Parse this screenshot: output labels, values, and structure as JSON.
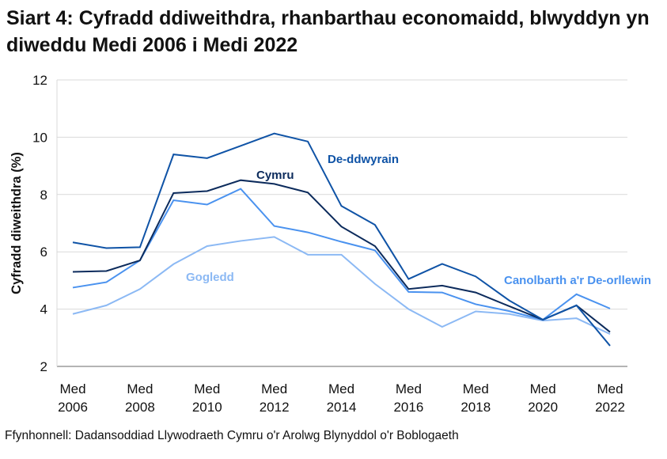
{
  "chart_data": {
    "type": "line",
    "title": "Siart 4: Cyfradd ddiweithdra, rhanbarthau economaidd, blwyddyn yn diweddu Medi 2006 i Medi 2022",
    "xlabel": "",
    "ylabel": "Cyfradd diweithdra (%)",
    "ylim": [
      2,
      12
    ],
    "yticks": [
      "2",
      "4",
      "6",
      "8",
      "10",
      "12"
    ],
    "grid": true,
    "x": [
      2006,
      2007,
      2008,
      2009,
      2010,
      2011,
      2012,
      2013,
      2014,
      2015,
      2016,
      2017,
      2018,
      2019,
      2020,
      2021,
      2022
    ],
    "xtick_labels": [
      {
        "year": 2006,
        "line1": "Med",
        "line2": "2006"
      },
      {
        "year": 2008,
        "line1": "Med",
        "line2": "2008"
      },
      {
        "year": 2010,
        "line1": "Med",
        "line2": "2010"
      },
      {
        "year": 2012,
        "line1": "Med",
        "line2": "2012"
      },
      {
        "year": 2014,
        "line1": "Med",
        "line2": "2014"
      },
      {
        "year": 2016,
        "line1": "Med",
        "line2": "2016"
      },
      {
        "year": 2018,
        "line1": "Med",
        "line2": "2018"
      },
      {
        "year": 2020,
        "line1": "Med",
        "line2": "2020"
      },
      {
        "year": 2022,
        "line1": "Med",
        "line2": "2022"
      }
    ],
    "series": [
      {
        "name": "Gogledd",
        "color": "#8cb9f4",
        "values": [
          3.83,
          4.13,
          4.7,
          5.57,
          6.2,
          6.38,
          6.52,
          5.9,
          5.9,
          4.88,
          4.0,
          3.38,
          3.92,
          3.83,
          3.6,
          3.68,
          3.13
        ]
      },
      {
        "name": "Canolbarth a'r De-orllewin",
        "color": "#4a92ef",
        "values": [
          4.75,
          4.94,
          5.7,
          7.8,
          7.65,
          8.2,
          6.9,
          6.68,
          6.35,
          6.05,
          4.6,
          4.58,
          4.17,
          3.93,
          3.63,
          4.52,
          4.02
        ]
      },
      {
        "name": "Cymru",
        "color": "#0c2b5c",
        "values": [
          5.3,
          5.33,
          5.7,
          8.05,
          8.12,
          8.5,
          8.37,
          8.07,
          6.88,
          6.2,
          4.7,
          4.82,
          4.58,
          4.1,
          3.63,
          4.13,
          3.2
        ]
      },
      {
        "name": "De-ddwyrain",
        "color": "#0f53a6",
        "values": [
          6.33,
          6.13,
          6.16,
          9.4,
          9.27,
          9.7,
          10.13,
          9.85,
          7.6,
          6.94,
          5.05,
          5.58,
          5.14,
          4.3,
          3.63,
          4.13,
          2.72
        ]
      }
    ]
  },
  "source": "Ffynhonnell: Dadansoddiad Llywodraeth Cymru o'r Arolwg Blynyddol o'r Boblogaeth"
}
